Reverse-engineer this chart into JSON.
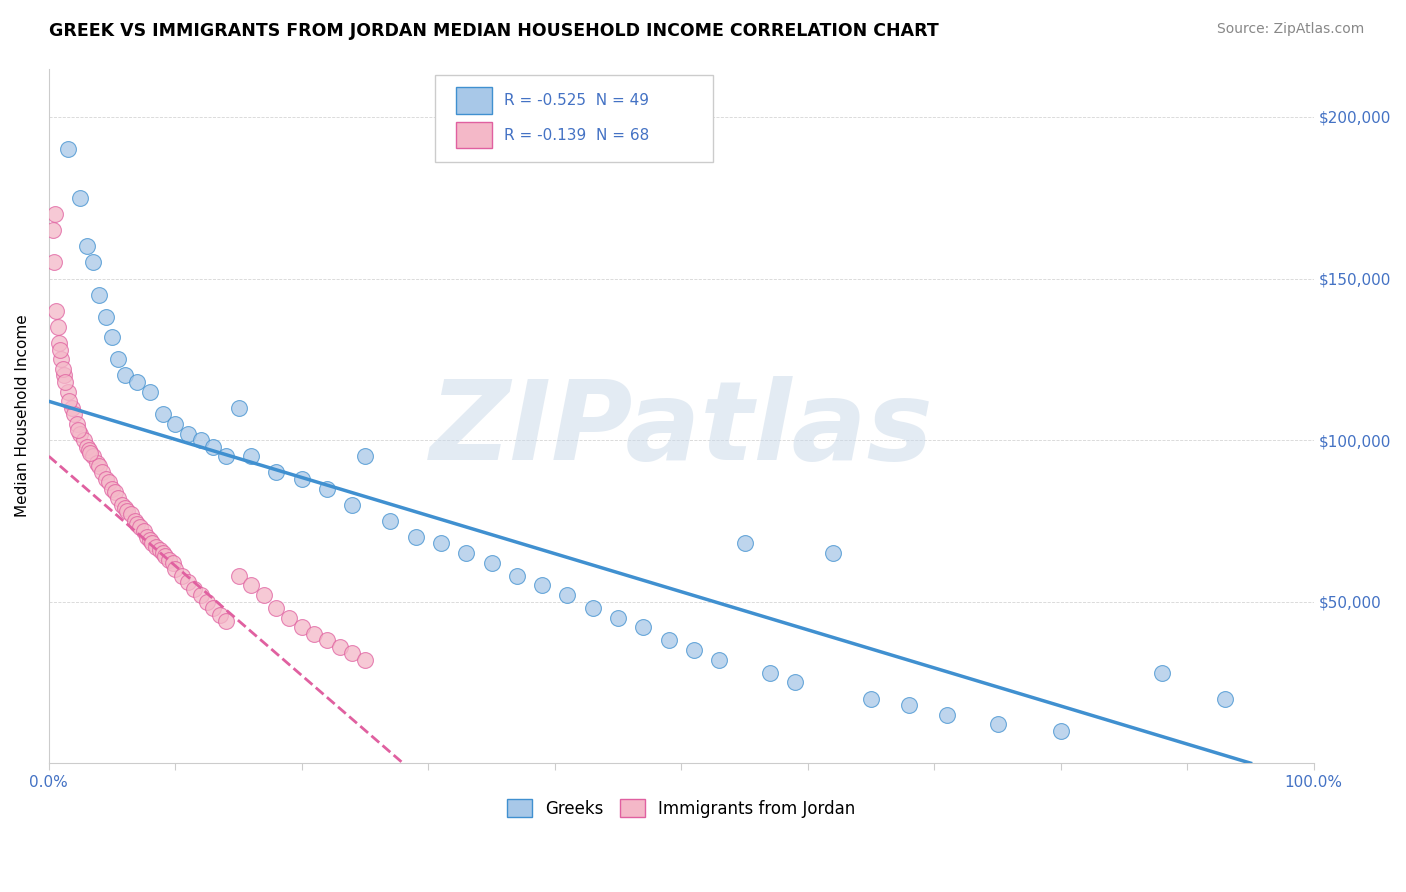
{
  "title": "GREEK VS IMMIGRANTS FROM JORDAN MEDIAN HOUSEHOLD INCOME CORRELATION CHART",
  "source": "Source: ZipAtlas.com",
  "ylabel": "Median Household Income",
  "yticks": [
    0,
    50000,
    100000,
    150000,
    200000
  ],
  "ytick_labels": [
    "",
    "$50,000",
    "$100,000",
    "$150,000",
    "$200,000"
  ],
  "legend_blue_r": "R = -0.525",
  "legend_blue_n": "N = 49",
  "legend_pink_r": "R = -0.139",
  "legend_pink_n": "N = 68",
  "legend_label_blue": "Greeks",
  "legend_label_pink": "Immigrants from Jordan",
  "blue_color": "#a8c8e8",
  "pink_color": "#f4b8c8",
  "blue_line_color": "#4090d0",
  "pink_line_color": "#e060a0",
  "watermark": "ZIPatlas",
  "background_color": "#ffffff",
  "blue_x": [
    1.5,
    2.5,
    3.0,
    3.5,
    4.0,
    4.5,
    5.0,
    5.5,
    6.0,
    7.0,
    8.0,
    9.0,
    10.0,
    11.0,
    12.0,
    13.0,
    14.0,
    15.0,
    16.0,
    18.0,
    20.0,
    22.0,
    24.0,
    25.0,
    27.0,
    29.0,
    31.0,
    33.0,
    35.0,
    37.0,
    39.0,
    41.0,
    43.0,
    45.0,
    47.0,
    49.0,
    51.0,
    53.0,
    55.0,
    57.0,
    59.0,
    62.0,
    65.0,
    68.0,
    71.0,
    75.0,
    80.0,
    88.0,
    93.0
  ],
  "blue_y": [
    190000,
    175000,
    160000,
    155000,
    145000,
    138000,
    132000,
    125000,
    120000,
    118000,
    115000,
    108000,
    105000,
    102000,
    100000,
    98000,
    95000,
    110000,
    95000,
    90000,
    88000,
    85000,
    80000,
    95000,
    75000,
    70000,
    68000,
    65000,
    62000,
    58000,
    55000,
    52000,
    48000,
    45000,
    42000,
    38000,
    35000,
    32000,
    68000,
    28000,
    25000,
    65000,
    20000,
    18000,
    15000,
    12000,
    10000,
    28000,
    20000
  ],
  "pink_x": [
    0.5,
    0.8,
    1.0,
    1.2,
    1.5,
    1.8,
    2.0,
    2.2,
    2.5,
    2.8,
    3.0,
    3.2,
    3.5,
    3.8,
    4.0,
    4.2,
    4.5,
    4.8,
    5.0,
    5.2,
    5.5,
    5.8,
    6.0,
    6.2,
    6.5,
    6.8,
    7.0,
    7.2,
    7.5,
    7.8,
    8.0,
    8.2,
    8.5,
    8.8,
    9.0,
    9.2,
    9.5,
    9.8,
    10.0,
    10.5,
    11.0,
    11.5,
    12.0,
    12.5,
    13.0,
    13.5,
    14.0,
    15.0,
    16.0,
    17.0,
    18.0,
    19.0,
    20.0,
    21.0,
    22.0,
    23.0,
    24.0,
    25.0,
    0.3,
    0.4,
    0.6,
    0.7,
    0.9,
    1.1,
    1.3,
    1.6,
    2.3,
    3.3
  ],
  "pink_y": [
    170000,
    130000,
    125000,
    120000,
    115000,
    110000,
    108000,
    105000,
    102000,
    100000,
    98000,
    97000,
    95000,
    93000,
    92000,
    90000,
    88000,
    87000,
    85000,
    84000,
    82000,
    80000,
    79000,
    78000,
    77000,
    75000,
    74000,
    73000,
    72000,
    70000,
    69000,
    68000,
    67000,
    66000,
    65000,
    64000,
    63000,
    62000,
    60000,
    58000,
    56000,
    54000,
    52000,
    50000,
    48000,
    46000,
    44000,
    58000,
    55000,
    52000,
    48000,
    45000,
    42000,
    40000,
    38000,
    36000,
    34000,
    32000,
    165000,
    155000,
    140000,
    135000,
    128000,
    122000,
    118000,
    112000,
    103000,
    96000
  ]
}
